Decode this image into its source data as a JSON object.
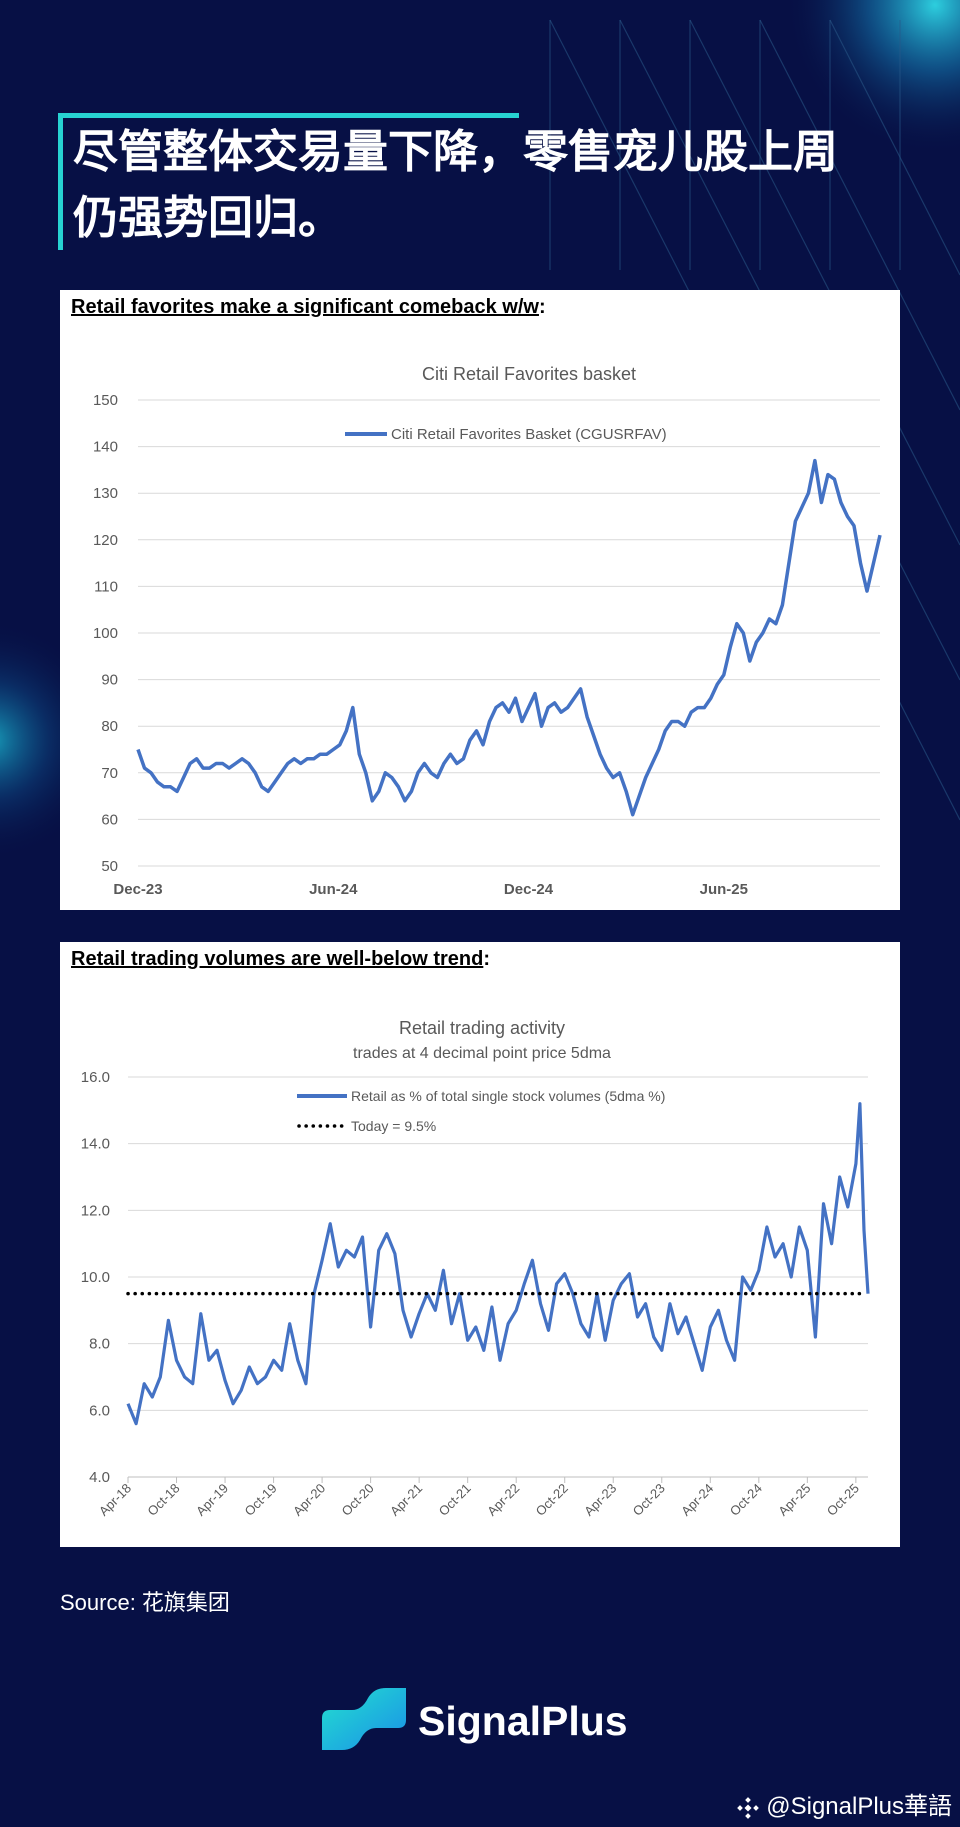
{
  "headline": {
    "line1": "尽管整体交易量下降，零售宠儿股上周",
    "line2": "仍强势回归。"
  },
  "panel1": {
    "heading_underlined": "Retail favorites make a significant comeback w/w",
    "heading_suffix": ":"
  },
  "panel2": {
    "heading_underlined": "Retail trading volumes are well-below trend",
    "heading_suffix": ":"
  },
  "source": "Source: 花旗集团",
  "brand": {
    "name": "SignalPlus"
  },
  "watermark": {
    "text": "@SignalPlus華語"
  },
  "colors": {
    "background": "#071045",
    "accent": "#27d3d2",
    "series": "#4472c4"
  },
  "chart_data": [
    {
      "type": "line",
      "title": "Citi Retail Favorites basket",
      "xlabel": "",
      "ylabel": "",
      "ylim": [
        50,
        150
      ],
      "y_ticks": [
        50,
        60,
        70,
        80,
        90,
        100,
        110,
        120,
        130,
        140,
        150
      ],
      "y_tick_labels": [
        "50",
        "60",
        "70",
        "80",
        "90",
        "100",
        "110",
        "120",
        "130",
        "140",
        "150"
      ],
      "x_tick_labels": [
        "Dec-23",
        "Jun-24",
        "Dec-24",
        "Jun-25"
      ],
      "x_tick_positions": [
        0,
        6,
        12,
        18
      ],
      "xlim": [
        0,
        22.8
      ],
      "grid": true,
      "legend": {
        "position": "top-center",
        "entries": [
          "Citi Retail Favorites Basket (CGUSRFAV)"
        ]
      },
      "series": [
        {
          "name": "Citi Retail Favorites Basket (CGUSRFAV)",
          "x": [
            0,
            0.2,
            0.4,
            0.6,
            0.8,
            1.0,
            1.2,
            1.4,
            1.6,
            1.8,
            2.0,
            2.2,
            2.4,
            2.6,
            2.8,
            3.0,
            3.2,
            3.4,
            3.6,
            3.8,
            4.0,
            4.2,
            4.4,
            4.6,
            4.8,
            5.0,
            5.2,
            5.4,
            5.6,
            5.8,
            6.0,
            6.2,
            6.4,
            6.6,
            6.8,
            7.0,
            7.2,
            7.4,
            7.6,
            7.8,
            8.0,
            8.2,
            8.4,
            8.6,
            8.8,
            9.0,
            9.2,
            9.4,
            9.6,
            9.8,
            10.0,
            10.2,
            10.4,
            10.6,
            10.8,
            11.0,
            11.2,
            11.4,
            11.6,
            11.8,
            12.0,
            12.2,
            12.4,
            12.6,
            12.8,
            13.0,
            13.2,
            13.4,
            13.6,
            13.8,
            14.0,
            14.2,
            14.4,
            14.6,
            14.8,
            15.0,
            15.2,
            15.4,
            15.6,
            15.8,
            16.0,
            16.2,
            16.4,
            16.6,
            16.8,
            17.0,
            17.2,
            17.4,
            17.6,
            17.8,
            18.0,
            18.2,
            18.4,
            18.6,
            18.8,
            19.0,
            19.2,
            19.4,
            19.6,
            19.8,
            20.0,
            20.2,
            20.4,
            20.6,
            20.8,
            21.0,
            21.2,
            21.4,
            21.6,
            21.8,
            22.0,
            22.2,
            22.4,
            22.6,
            22.8
          ],
          "values": [
            75,
            71,
            70,
            68,
            67,
            67,
            66,
            69,
            72,
            73,
            71,
            71,
            72,
            72,
            71,
            72,
            73,
            72,
            70,
            67,
            66,
            68,
            70,
            72,
            73,
            72,
            73,
            73,
            74,
            74,
            75,
            76,
            79,
            84,
            74,
            70,
            64,
            66,
            70,
            69,
            67,
            64,
            66,
            70,
            72,
            70,
            69,
            72,
            74,
            72,
            73,
            77,
            79,
            76,
            81,
            84,
            85,
            83,
            86,
            81,
            84,
            87,
            80,
            84,
            85,
            83,
            84,
            86,
            88,
            82,
            78,
            74,
            71,
            69,
            70,
            66,
            61,
            65,
            69,
            72,
            75,
            79,
            81,
            81,
            80,
            83,
            84,
            84,
            86,
            89,
            91,
            97,
            102,
            100,
            94,
            98,
            100,
            103,
            102,
            106,
            115,
            124,
            127,
            130,
            137,
            128,
            134,
            133,
            128,
            125,
            123,
            115,
            109,
            115,
            121
          ]
        }
      ]
    },
    {
      "type": "line",
      "title": "Retail trading activity",
      "subtitle": "trades at 4 decimal point price 5dma",
      "xlabel": "",
      "ylabel": "",
      "ylim": [
        4.0,
        16.0
      ],
      "y_ticks": [
        4,
        6,
        8,
        10,
        12,
        14,
        16
      ],
      "y_tick_labels": [
        "4.0",
        "6.0",
        "8.0",
        "10.0",
        "12.0",
        "14.0",
        "16.0"
      ],
      "x_tick_labels": [
        "Apr-18",
        "Oct-18",
        "Apr-19",
        "Oct-19",
        "Apr-20",
        "Oct-20",
        "Apr-21",
        "Oct-21",
        "Apr-22",
        "Oct-22",
        "Apr-23",
        "Oct-23",
        "Apr-24",
        "Oct-24",
        "Apr-25",
        "Oct-25"
      ],
      "x_tick_positions": [
        0,
        6,
        12,
        18,
        24,
        30,
        36,
        42,
        48,
        54,
        60,
        66,
        72,
        78,
        84,
        90
      ],
      "xlim": [
        0,
        91.5
      ],
      "grid": true,
      "legend": {
        "position": "top-center",
        "entries": [
          "Retail as % of total single stock volumes (5dma %)",
          "Today = 9.5%"
        ]
      },
      "series": [
        {
          "name": "Retail as % of total single stock volumes (5dma %)",
          "x": [
            0,
            1,
            2,
            3,
            4,
            5,
            6,
            7,
            8,
            9,
            10,
            11,
            12,
            13,
            14,
            15,
            16,
            17,
            18,
            19,
            20,
            21,
            22,
            23,
            24,
            25,
            26,
            27,
            28,
            29,
            30,
            31,
            32,
            33,
            34,
            35,
            36,
            37,
            38,
            39,
            40,
            41,
            42,
            43,
            44,
            45,
            46,
            47,
            48,
            49,
            50,
            51,
            52,
            53,
            54,
            55,
            56,
            57,
            58,
            59,
            60,
            61,
            62,
            63,
            64,
            65,
            66,
            67,
            68,
            69,
            70,
            71,
            72,
            73,
            74,
            75,
            76,
            77,
            78,
            79,
            80,
            81,
            82,
            83,
            84,
            85,
            86,
            87,
            88,
            89,
            90,
            90.5,
            91,
            91.5
          ],
          "values": [
            6.2,
            5.6,
            6.8,
            6.4,
            7.0,
            8.7,
            7.5,
            7.0,
            6.8,
            8.9,
            7.5,
            7.8,
            6.9,
            6.2,
            6.6,
            7.3,
            6.8,
            7.0,
            7.5,
            7.2,
            8.6,
            7.5,
            6.8,
            9.5,
            10.5,
            11.6,
            10.3,
            10.8,
            10.6,
            11.2,
            8.5,
            10.8,
            11.3,
            10.7,
            9.0,
            8.2,
            8.9,
            9.5,
            9.0,
            10.2,
            8.6,
            9.5,
            8.1,
            8.5,
            7.8,
            9.1,
            7.5,
            8.6,
            9.0,
            9.8,
            10.5,
            9.2,
            8.4,
            9.8,
            10.1,
            9.5,
            8.6,
            8.2,
            9.5,
            8.1,
            9.3,
            9.8,
            10.1,
            8.8,
            9.2,
            8.2,
            7.8,
            9.2,
            8.3,
            8.8,
            8.0,
            7.2,
            8.5,
            9.0,
            8.1,
            7.5,
            10.0,
            9.6,
            10.2,
            11.5,
            10.6,
            11.0,
            10.0,
            11.5,
            10.8,
            8.2,
            12.2,
            11.0,
            13.0,
            12.1,
            13.4,
            15.2,
            11.4,
            9.5
          ]
        },
        {
          "name": "Today = 9.5%",
          "value": 9.5,
          "style": "dotted"
        }
      ]
    }
  ]
}
